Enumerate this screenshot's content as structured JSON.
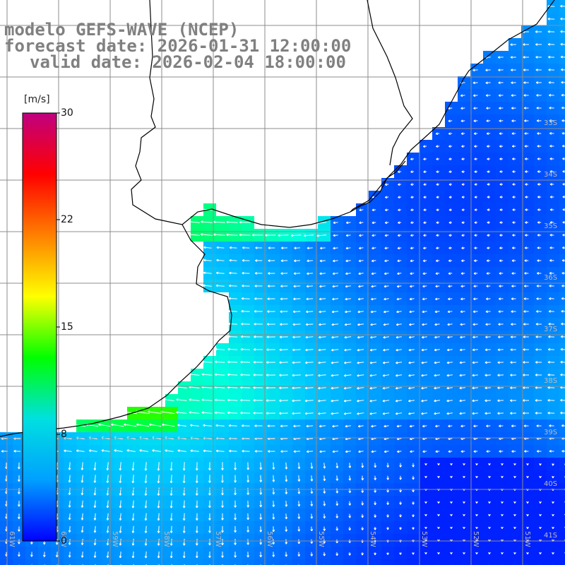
{
  "title": {
    "model": "modelo GEFS-WAVE (NCEP)",
    "forecast": "forecast date: 2026-01-31 12:00:00",
    "valid": "valid date: 2026-02-04 18:00:00"
  },
  "colorbar": {
    "unit": "[m/s]",
    "ticks": [
      "30",
      "22",
      "15",
      "8",
      "0"
    ],
    "colors": [
      "#0000ff",
      "#00a0ff",
      "#00e0e0",
      "#00ff00",
      "#ffff00",
      "#ff8000",
      "#ff0000",
      "#c00080"
    ]
  },
  "lat_labels": [
    "33S",
    "34S",
    "35S",
    "36S",
    "37S",
    "38S",
    "39S",
    "40S",
    "41S"
  ],
  "lon_labels": [
    "61W",
    "60W",
    "59W",
    "58W",
    "57W",
    "56W",
    "55W",
    "54W",
    "53W",
    "52W",
    "51W"
  ],
  "colors": {
    "land": "#ffffff",
    "grid": "#8c8c8c",
    "coast": "#000000",
    "arrow": "#ffffff"
  }
}
